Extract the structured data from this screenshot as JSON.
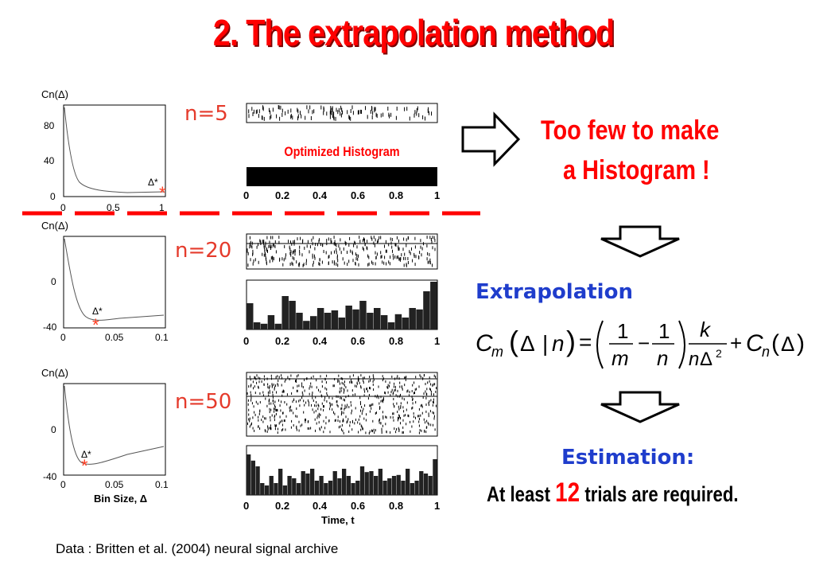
{
  "slide": {
    "title": "2. The extrapolation method",
    "n_labels": [
      "n=5",
      "n=20",
      "n=50"
    ],
    "optimized_label": "Optimized Histogram",
    "too_few_line1": "Too few to make",
    "too_few_line2": "a Histogram !",
    "extrapolation_label": "Extrapolation",
    "estimation_label": "Estimation:",
    "conclusion_pre": "At least",
    "conclusion_num": "12",
    "conclusion_post": "trials are required.",
    "data_credit": "Data : Britten et al. (2004) neural signal archive",
    "axis_cn_label": "Cn(Δ)",
    "axis_bin_label": "Bin Size, Δ",
    "axis_time_label": "Time, t",
    "delta_star": "Δ*",
    "colors": {
      "accent_red": "#ff0000",
      "blue": "#1f3dcc",
      "star": "#ff3b1f"
    }
  },
  "chart_data": [
    {
      "type": "line",
      "name": "Cn vs bin size (n=5)",
      "x": [
        0,
        0.1,
        0.2,
        0.3,
        0.5,
        0.7,
        1.0
      ],
      "y": [
        100,
        40,
        18,
        10,
        8,
        8,
        8
      ],
      "yticks": [
        0,
        40,
        80
      ],
      "xticks": [
        0,
        0.5,
        1
      ],
      "optimum_x": 1.0
    },
    {
      "type": "line",
      "name": "Cn vs bin size (n=20)",
      "x": [
        0,
        0.01,
        0.02,
        0.03,
        0.04,
        0.06,
        0.1
      ],
      "y": [
        40,
        -5,
        -30,
        -42,
        -40,
        -35,
        -30
      ],
      "yticks": [
        -40,
        0
      ],
      "xticks": [
        0,
        0.05,
        0.1
      ],
      "optimum_x": 0.035
    },
    {
      "type": "line",
      "name": "Cn vs bin size (n=50)",
      "x": [
        0,
        0.01,
        0.02,
        0.03,
        0.05,
        0.07,
        0.1
      ],
      "y": [
        40,
        -10,
        -32,
        -35,
        -28,
        -22,
        -18
      ],
      "yticks": [
        -40,
        0
      ],
      "xticks": [
        0,
        0.05,
        0.1
      ],
      "optimum_x": 0.022
    },
    {
      "type": "bar",
      "name": "Histogram (n=20)",
      "values": [
        0.55,
        0.15,
        0.12,
        0.3,
        0.12,
        0.7,
        0.6,
        0.35,
        0.18,
        0.28,
        0.45,
        0.35,
        0.4,
        0.25,
        0.5,
        0.42,
        0.6,
        0.35,
        0.45,
        0.3,
        0.15,
        0.32,
        0.25,
        0.45,
        0.42,
        0.8,
        1.0
      ]
    },
    {
      "type": "bar",
      "name": "Histogram (n=50)",
      "values": [
        0.85,
        0.72,
        0.6,
        0.25,
        0.2,
        0.4,
        0.25,
        0.55,
        0.2,
        0.4,
        0.35,
        0.25,
        0.5,
        0.45,
        0.55,
        0.3,
        0.4,
        0.25,
        0.3,
        0.5,
        0.35,
        0.55,
        0.4,
        0.25,
        0.3,
        0.6,
        0.48,
        0.5,
        0.4,
        0.55,
        0.3,
        0.35,
        0.4,
        0.42,
        0.3,
        0.55,
        0.25,
        0.3,
        0.5,
        0.45,
        0.4,
        0.75
      ]
    }
  ]
}
